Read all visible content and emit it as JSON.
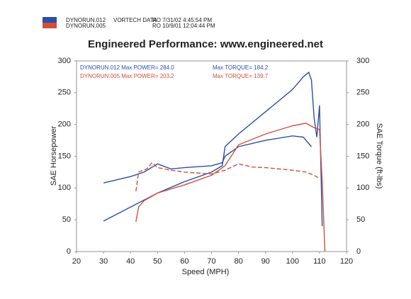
{
  "chart_data": {
    "type": "line",
    "header_lines": [
      {
        "texts": [
          "DYNORUN.012",
          "VORTECH DATA",
          "RO  7/31/02 4:45:54 PM"
        ]
      },
      {
        "texts": [
          "DYNORUN.005",
          "RO  10/9/01 12:04:44 PM"
        ]
      }
    ],
    "title": "Engineered Performance:   www.engineered.net",
    "x_label": "Speed (MPH)",
    "y_label": "SAE Horsepower",
    "y2_label": "SAE Torque (ft-lbs)",
    "xlim": [
      20,
      120
    ],
    "xticks": [
      20,
      30,
      40,
      50,
      60,
      70,
      80,
      90,
      100,
      110,
      120
    ],
    "ylim": [
      0,
      300
    ],
    "yticks": [
      0,
      50,
      100,
      150,
      200,
      250,
      300
    ],
    "y2lim": [
      0,
      300
    ],
    "y2ticks": [
      0,
      50,
      100,
      150,
      200,
      250,
      300
    ],
    "annotations": [
      {
        "text": "DYNORUN.012  Max POWER= 284.0",
        "color": "#2b4fa8"
      },
      {
        "text": "Max TORQUE= 184.2",
        "color": "#2b4fa8"
      },
      {
        "text": "DYNORUN.005  Max POWER= 203.2",
        "color": "#d0503c"
      },
      {
        "text": "Max TORQUE= 139.7",
        "color": "#d0503c"
      }
    ],
    "series": [
      {
        "name": "DYNORUN.012",
        "color": "#2b4fa8",
        "axis": "y",
        "x": [
          30,
          40,
          50,
          60,
          70,
          74,
          75,
          80,
          90,
          100,
          104,
          106,
          107,
          108,
          109,
          110,
          111
        ],
        "values": [
          48,
          70,
          92,
          110,
          125,
          135,
          165,
          185,
          220,
          255,
          275,
          282,
          270,
          210,
          180,
          230,
          40
        ]
      },
      {
        "name": "DYNORUN.012",
        "color": "#2b4fa8",
        "axis": "y2",
        "x": [
          30,
          40,
          45,
          50,
          55,
          60,
          70,
          74,
          75,
          80,
          90,
          100,
          104,
          107
        ],
        "values": [
          108,
          118,
          125,
          138,
          130,
          132,
          135,
          140,
          150,
          165,
          175,
          182,
          180,
          165
        ]
      },
      {
        "name": "DYNORUN.005",
        "color": "#d0503c",
        "axis": "y",
        "x": [
          42,
          43,
          45,
          50,
          60,
          70,
          75,
          80,
          90,
          100,
          105,
          108,
          110,
          111,
          112
        ],
        "values": [
          47,
          70,
          80,
          92,
          105,
          120,
          135,
          168,
          185,
          198,
          202,
          195,
          192,
          110,
          0
        ]
      },
      {
        "name": "DYNORUN.005",
        "color": "#d0503c",
        "axis": "y2",
        "dashed": true,
        "x": [
          42,
          43,
          46,
          48,
          50,
          55,
          60,
          70,
          75,
          80,
          85,
          90,
          95,
          100,
          105,
          108,
          110
        ],
        "values": [
          95,
          125,
          130,
          140,
          132,
          128,
          125,
          122,
          128,
          138,
          133,
          132,
          130,
          128,
          125,
          120,
          115
        ]
      }
    ]
  }
}
